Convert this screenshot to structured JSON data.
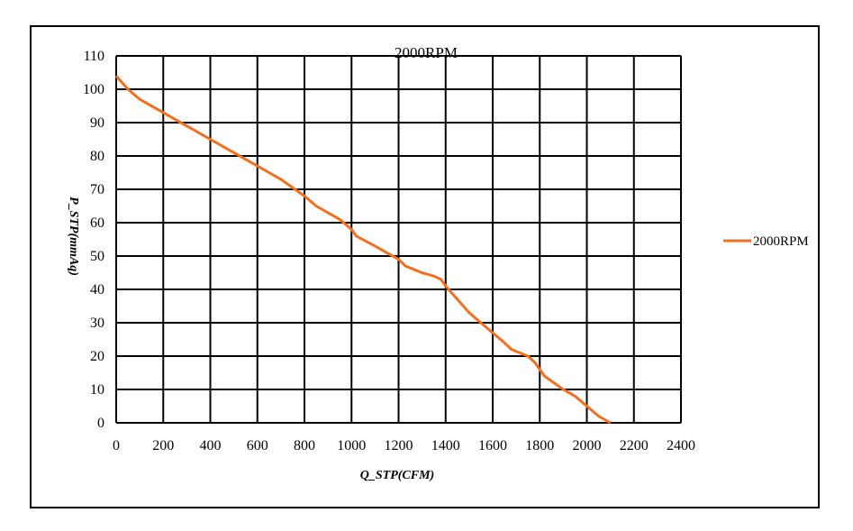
{
  "chart_data": {
    "type": "line",
    "title": "2000RPM",
    "xlabel": "Q_STP(CFM)",
    "ylabel": "P_STP(mmAq)",
    "xlim": [
      0,
      2400
    ],
    "ylim": [
      0,
      110
    ],
    "xticks": [
      0,
      200,
      400,
      600,
      800,
      1000,
      1200,
      1400,
      1600,
      1800,
      2000,
      2200,
      2400
    ],
    "yticks": [
      0,
      10,
      20,
      30,
      40,
      50,
      60,
      70,
      80,
      90,
      100,
      110
    ],
    "grid": true,
    "legend": "right",
    "colors": {
      "series": "#f07020",
      "grid": "#000000"
    },
    "series": [
      {
        "name": "2000RPM",
        "x": [
          0,
          50,
          100,
          200,
          300,
          400,
          500,
          600,
          650,
          700,
          720,
          800,
          850,
          900,
          950,
          1000,
          1020,
          1100,
          1150,
          1200,
          1230,
          1300,
          1350,
          1380,
          1400,
          1500,
          1550,
          1600,
          1650,
          1680,
          1750,
          1780,
          1820,
          1900,
          1950,
          2000,
          2050,
          2080,
          2100
        ],
        "y": [
          104,
          100,
          97,
          93,
          89,
          85,
          81,
          77,
          75,
          73,
          72,
          68,
          65,
          63,
          61,
          58,
          56,
          53,
          51,
          49,
          47,
          45,
          44,
          43,
          41,
          33,
          30,
          27,
          24,
          22,
          20,
          18,
          14,
          10,
          8,
          5,
          2,
          0.8,
          0
        ]
      }
    ]
  }
}
